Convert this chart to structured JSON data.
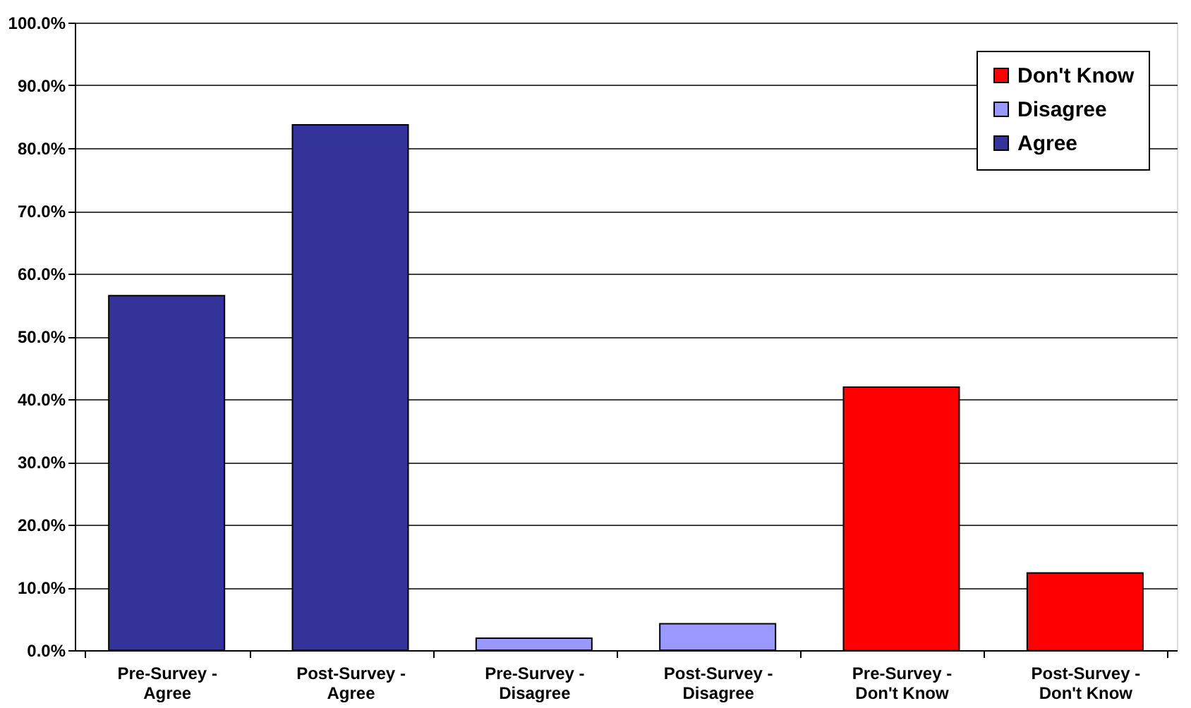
{
  "chart_data": {
    "type": "bar",
    "categories": [
      "Pre-Survey - Agree",
      "Post-Survey - Agree",
      "Pre-Survey - Disagree",
      "Post-Survey - Disagree",
      "Pre-Survey - Don't Know",
      "Post-Survey - Don't Know"
    ],
    "series": [
      {
        "name": "Don't Know",
        "color": "#ff0000",
        "values": [
          null,
          null,
          null,
          null,
          41.9,
          12.3
        ]
      },
      {
        "name": "Disagree",
        "color": "#9999ff",
        "values": [
          null,
          null,
          1.9,
          4.2,
          null,
          null
        ]
      },
      {
        "name": "Agree",
        "color": "#333399",
        "values": [
          56.5,
          83.7,
          null,
          null,
          null,
          null
        ]
      }
    ],
    "ylim": [
      0,
      100
    ],
    "yticks": [
      {
        "value": 0,
        "label": "0.0%"
      },
      {
        "value": 10,
        "label": "10.0%"
      },
      {
        "value": 20,
        "label": "20.0%"
      },
      {
        "value": 30,
        "label": "30.0%"
      },
      {
        "value": 40,
        "label": "40.0%"
      },
      {
        "value": 50,
        "label": "50.0%"
      },
      {
        "value": 60,
        "label": "60.0%"
      },
      {
        "value": 70,
        "label": "70.0%"
      },
      {
        "value": 80,
        "label": "80.0%"
      },
      {
        "value": 90,
        "label": "90.0%"
      },
      {
        "value": 100,
        "label": "100.0%"
      }
    ],
    "grid": "y",
    "legend": "top right"
  }
}
